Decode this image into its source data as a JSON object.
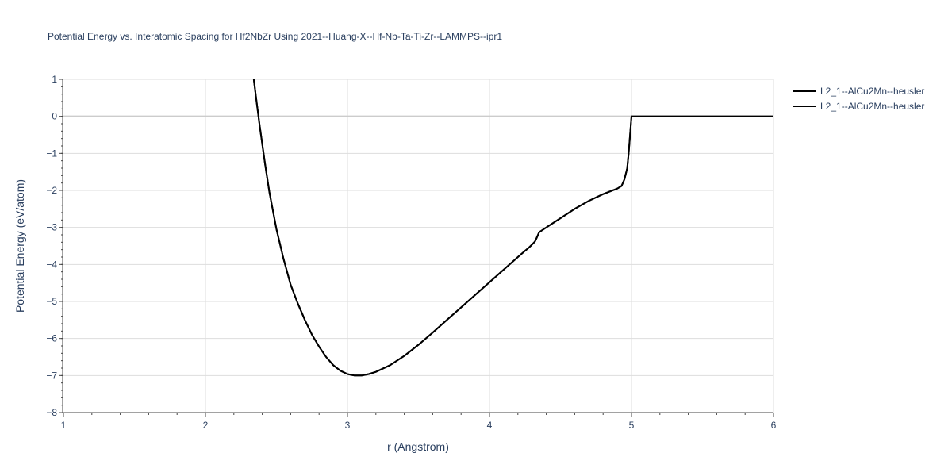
{
  "chart_data": {
    "type": "line",
    "title": "Potential Energy vs. Interatomic Spacing for Hf2NbZr Using 2021--Huang-X--Hf-Nb-Ta-Ti-Zr--LAMMPS--ipr1",
    "xlabel": "r (Angstrom)",
    "ylabel": "Potential Energy (eV/atom)",
    "xlim": [
      1,
      6
    ],
    "ylim": [
      -8,
      1
    ],
    "x_ticks": [
      "1",
      "2",
      "3",
      "4",
      "5",
      "6"
    ],
    "y_ticks": [
      "1",
      "0",
      "−1",
      "−2",
      "−3",
      "−4",
      "−5",
      "−6",
      "−7",
      "−8"
    ],
    "grid": true,
    "legend_position": "top-right",
    "line_color": "#000000",
    "series": [
      {
        "name": "L2_1--AlCu2Mn--heusler",
        "x": [
          2.34,
          2.36,
          2.38,
          2.4,
          2.42,
          2.45,
          2.5,
          2.55,
          2.6,
          2.65,
          2.7,
          2.75,
          2.8,
          2.85,
          2.9,
          2.95,
          3.0,
          3.05,
          3.1,
          3.15,
          3.2,
          3.3,
          3.4,
          3.5,
          3.6,
          3.7,
          3.8,
          3.9,
          4.0,
          4.1,
          4.2,
          4.25,
          4.27,
          4.29,
          4.31,
          4.32,
          4.33,
          4.35,
          4.4,
          4.5,
          4.6,
          4.7,
          4.8,
          4.9,
          4.93,
          4.95,
          4.97,
          4.98,
          4.99,
          5.0,
          5.2,
          5.5,
          6.0
        ],
        "y": [
          1.0,
          0.4,
          -0.2,
          -0.75,
          -1.3,
          -2.05,
          -3.05,
          -3.85,
          -4.55,
          -5.05,
          -5.5,
          -5.9,
          -6.22,
          -6.5,
          -6.72,
          -6.87,
          -6.96,
          -7.0,
          -7.0,
          -6.96,
          -6.9,
          -6.72,
          -6.47,
          -6.17,
          -5.84,
          -5.5,
          -5.16,
          -4.82,
          -4.48,
          -4.14,
          -3.8,
          -3.63,
          -3.57,
          -3.5,
          -3.42,
          -3.38,
          -3.3,
          -3.13,
          -3.0,
          -2.75,
          -2.5,
          -2.28,
          -2.1,
          -1.95,
          -1.88,
          -1.7,
          -1.4,
          -1.0,
          -0.5,
          0.0,
          0.0,
          0.0,
          0.0
        ]
      },
      {
        "name": "L2_1--AlCu2Mn--heusler",
        "x": [
          2.34,
          2.36,
          2.38,
          2.4,
          2.42,
          2.45,
          2.5,
          2.55,
          2.6,
          2.65,
          2.7,
          2.75,
          2.8,
          2.85,
          2.9,
          2.95,
          3.0,
          3.05,
          3.1,
          3.15,
          3.2,
          3.3,
          3.4,
          3.5,
          3.6,
          3.7,
          3.8,
          3.9,
          4.0,
          4.1,
          4.2,
          4.25,
          4.27,
          4.29,
          4.31,
          4.32,
          4.33,
          4.35,
          4.4,
          4.5,
          4.6,
          4.7,
          4.8,
          4.9,
          4.93,
          4.95,
          4.97,
          4.98,
          4.99,
          5.0,
          5.2,
          5.5,
          6.0
        ],
        "y": [
          1.0,
          0.4,
          -0.2,
          -0.75,
          -1.3,
          -2.05,
          -3.05,
          -3.85,
          -4.55,
          -5.05,
          -5.5,
          -5.9,
          -6.22,
          -6.5,
          -6.72,
          -6.87,
          -6.96,
          -7.0,
          -7.0,
          -6.96,
          -6.9,
          -6.72,
          -6.47,
          -6.17,
          -5.84,
          -5.5,
          -5.16,
          -4.82,
          -4.48,
          -4.14,
          -3.8,
          -3.63,
          -3.57,
          -3.5,
          -3.42,
          -3.38,
          -3.3,
          -3.13,
          -3.0,
          -2.75,
          -2.5,
          -2.28,
          -2.1,
          -1.95,
          -1.88,
          -1.7,
          -1.4,
          -1.0,
          -0.5,
          0.0,
          0.0,
          0.0,
          0.0
        ]
      }
    ]
  }
}
